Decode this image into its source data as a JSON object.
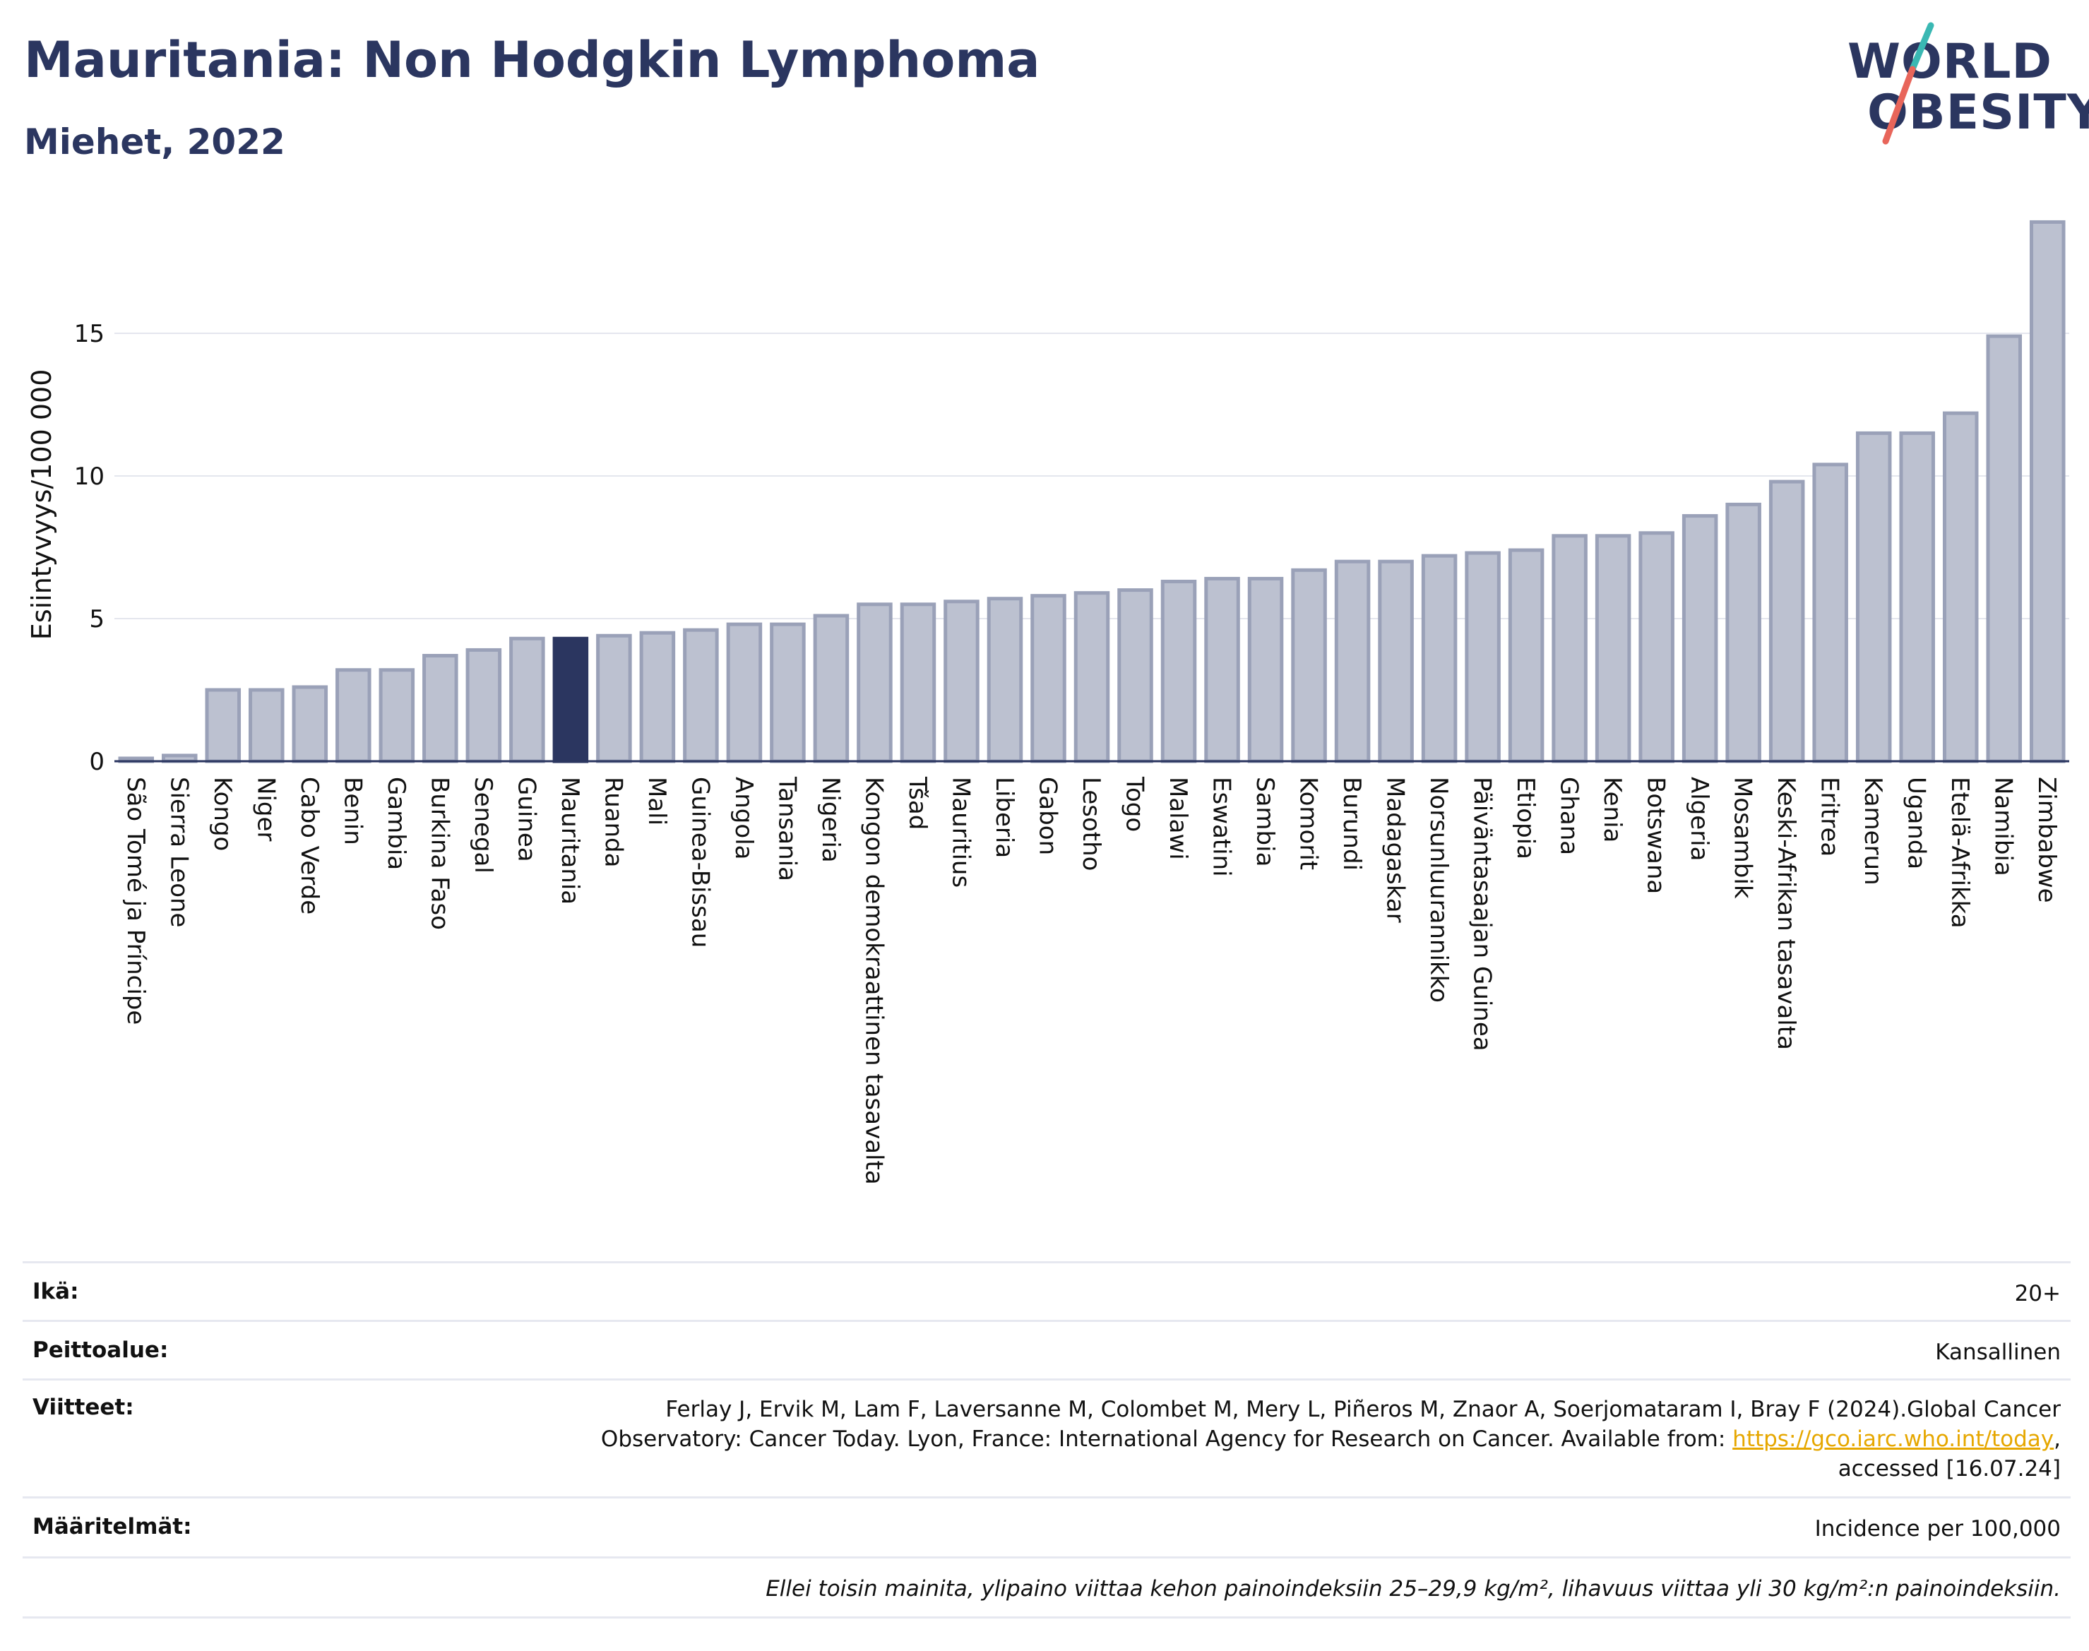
{
  "header": {
    "title": "Mauritania: Non Hodgkin Lymphoma",
    "subtitle": "Miehet, 2022"
  },
  "logo": {
    "line1": "WORLD",
    "line2": "OBESITY",
    "slash_colors": [
      "#3ab8b3",
      "#e8655a"
    ]
  },
  "chart_data": {
    "type": "bar",
    "ylabel": "Esiintyvyys/100 000",
    "xlabel": "",
    "ylim": [
      0,
      19
    ],
    "yticks": [
      0,
      5,
      10,
      15
    ],
    "grid": true,
    "highlight": "Mauritania",
    "colors": {
      "bar": "#bcc1d0",
      "bar_edge": "#9aa1b8",
      "highlight": "#2b3660",
      "grid": "#e4e6ee",
      "axis": "#2b3660"
    },
    "categories": [
      "São Tomé ja Príncipe",
      "Sierra Leone",
      "Kongo",
      "Niger",
      "Cabo Verde",
      "Benin",
      "Gambia",
      "Burkina Faso",
      "Senegal",
      "Guinea",
      "Mauritania",
      "Ruanda",
      "Mali",
      "Guinea-Bissau",
      "Angola",
      "Tansania",
      "Nigeria",
      "Kongon demokraattinen tasavalta",
      "Tšad",
      "Mauritius",
      "Liberia",
      "Gabon",
      "Lesotho",
      "Togo",
      "Malawi",
      "Eswatini",
      "Sambia",
      "Komorit",
      "Burundi",
      "Madagaskar",
      "Norsunluurannikko",
      "Päiväntasaajan Guinea",
      "Etiopia",
      "Ghana",
      "Kenia",
      "Botswana",
      "Algeria",
      "Mosambik",
      "Keski-Afrikan tasavalta",
      "Eritrea",
      "Kamerun",
      "Uganda",
      "Etelä-Afrikka",
      "Namibia",
      "Zimbabwe"
    ],
    "values": [
      0.1,
      0.2,
      2.5,
      2.5,
      2.6,
      3.2,
      3.2,
      3.7,
      3.9,
      4.3,
      4.3,
      4.4,
      4.5,
      4.6,
      4.8,
      4.8,
      5.1,
      5.5,
      5.5,
      5.6,
      5.7,
      5.8,
      5.9,
      6.0,
      6.3,
      6.4,
      6.4,
      6.7,
      7.0,
      7.0,
      7.2,
      7.3,
      7.4,
      7.9,
      7.9,
      8.0,
      8.6,
      9.0,
      9.8,
      10.4,
      11.5,
      11.5,
      12.2,
      14.9,
      18.9
    ]
  },
  "info": {
    "age_label": "Ikä:",
    "age_value": "20+",
    "coverage_label": "Peittoalue:",
    "coverage_value": "Kansallinen",
    "references_label": "Viitteet:",
    "references_line1": "Ferlay J, Ervik M, Lam F, Laversanne M, Colombet M, Mery L, Piñeros M, Znaor A, Soerjomataram I, Bray F (2024).Global Cancer",
    "references_line2_pre": "Observatory: Cancer Today. Lyon, France: International Agency for Research on Cancer. Available from: ",
    "references_link": "https://gco.iarc.who.int/today",
    "references_line2_post": ",",
    "references_line3": "accessed [16.07.24]",
    "definitions_label": "Määritelmät:",
    "definitions_value": "Incidence per 100,000",
    "footnote": "Ellei toisin mainita, ylipaino viittaa kehon painoindeksiin 25–29,9 kg/m², lihavuus viittaa yli 30 kg/m²:n painoindeksiin."
  }
}
